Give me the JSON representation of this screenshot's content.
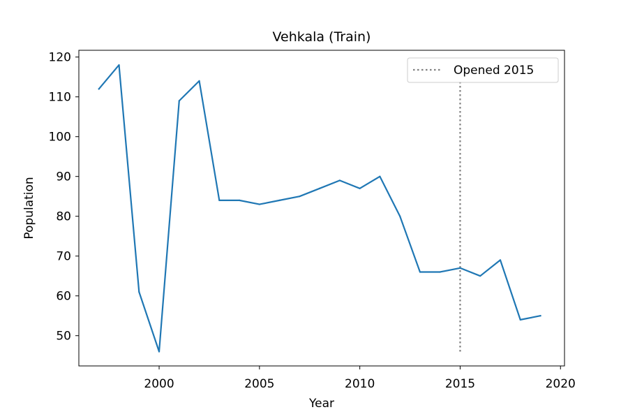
{
  "chart_data": {
    "type": "line",
    "title": "Vehkala (Train)",
    "xlabel": "Year",
    "ylabel": "Population",
    "xlim": [
      1996,
      2020.2
    ],
    "ylim": [
      42.4,
      121.7
    ],
    "xticks": [
      2000,
      2005,
      2010,
      2015,
      2020
    ],
    "yticks": [
      50,
      60,
      70,
      80,
      90,
      100,
      110,
      120
    ],
    "grid": false,
    "legend_position": "top-right",
    "series": [
      {
        "name": "Population",
        "color": "#1f77b4",
        "x": [
          1997,
          1998,
          1999,
          2000,
          2001,
          2002,
          2003,
          2004,
          2005,
          2006,
          2007,
          2008,
          2009,
          2010,
          2011,
          2012,
          2013,
          2014,
          2015,
          2016,
          2017,
          2018,
          2019
        ],
        "y": [
          112,
          118,
          61,
          46,
          109,
          114,
          84,
          84,
          83,
          84,
          85,
          87,
          89,
          87,
          90,
          80,
          66,
          66,
          67,
          65,
          69,
          54,
          55
        ]
      }
    ],
    "annotations": [
      {
        "type": "vline",
        "x": 2015,
        "y_range": [
          46,
          114
        ],
        "label": "Opened 2015",
        "color": "#808080",
        "style": "dotted"
      }
    ]
  }
}
